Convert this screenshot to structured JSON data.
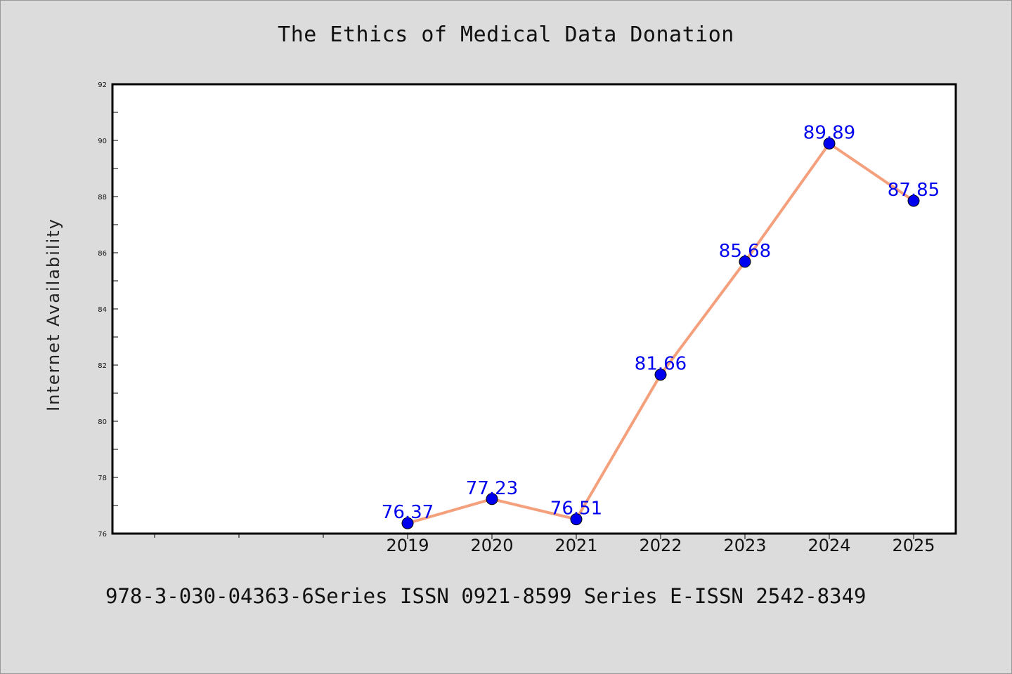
{
  "footer_text": "978-3-030-04363-6Series ISSN 0921-8599 Series E-ISSN 2542-8349",
  "colors": {
    "background": "#dcdcdc",
    "plot_background": "#ffffff",
    "line": "#f4a07c",
    "marker": "#0000ee",
    "data_label": "#0000ee"
  },
  "chart_data": {
    "type": "line",
    "title": "The Ethics of Medical Data Donation",
    "xlabel": "",
    "ylabel": "Internet Availability",
    "categories": [
      "2019",
      "2020",
      "2021",
      "2022",
      "2023",
      "2024",
      "2025"
    ],
    "series": [
      {
        "values": [
          76.37,
          77.23,
          76.51,
          81.66,
          85.68,
          89.89,
          87.85
        ],
        "data_labels": [
          "76.37",
          "77.23",
          "76.51",
          "81.66",
          "85.68",
          "89.89",
          "87.85"
        ]
      }
    ],
    "ylim": [
      76,
      92
    ],
    "y_ticks": [
      "76",
      "78",
      "80",
      "82",
      "84",
      "86",
      "88",
      "90",
      "92"
    ],
    "grid": false,
    "legend": "none"
  }
}
